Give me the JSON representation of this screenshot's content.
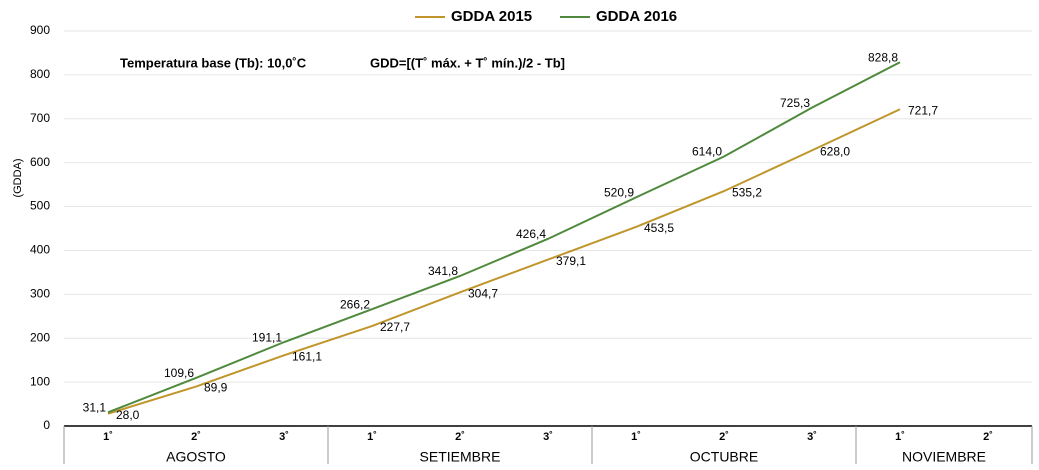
{
  "chart_data": {
    "type": "line",
    "annotations": [
      "Temperatura base (Tb): 10,0˚C",
      "GDD=[(T˚ máx. + T˚ mín.)/2 - Tb]"
    ],
    "y_label": "(GDDA)",
    "groups": [
      {
        "name": "AGOSTO",
        "categories": [
          "1˚",
          "2˚",
          "3˚"
        ]
      },
      {
        "name": "SETIEMBRE",
        "categories": [
          "1˚",
          "2˚",
          "3˚"
        ]
      },
      {
        "name": "OCTUBRE",
        "categories": [
          "1˚",
          "2˚",
          "3˚"
        ]
      },
      {
        "name": "NOVIEMBRE",
        "categories": [
          "1˚",
          "2˚"
        ]
      }
    ],
    "series": [
      {
        "name": "GDDA 2015",
        "color": "#c0962c",
        "values": [
          28.0,
          89.9,
          161.1,
          227.7,
          304.7,
          379.1,
          453.5,
          535.2,
          628.0,
          721.7,
          null
        ],
        "value_labels": [
          "28,0",
          "89,9",
          "161,1",
          "227,7",
          "304,7",
          "379,1",
          "453,5",
          "535,2",
          "628,0",
          "721,7",
          null
        ]
      },
      {
        "name": "GDDA 2016",
        "color": "#4f8a3c",
        "values": [
          31.1,
          109.6,
          191.1,
          266.2,
          341.8,
          426.4,
          520.9,
          614.0,
          725.3,
          828.8,
          null
        ],
        "value_labels": [
          "31,1",
          "109,6",
          "191,1",
          "266,2",
          "341,8",
          "426,4",
          "520,9",
          "614,0",
          "725,3",
          "828,8",
          null
        ]
      }
    ],
    "ylim": [
      0,
      900
    ],
    "yticks": [
      0,
      100,
      200,
      300,
      400,
      500,
      600,
      700,
      800,
      900
    ],
    "grid": true
  }
}
